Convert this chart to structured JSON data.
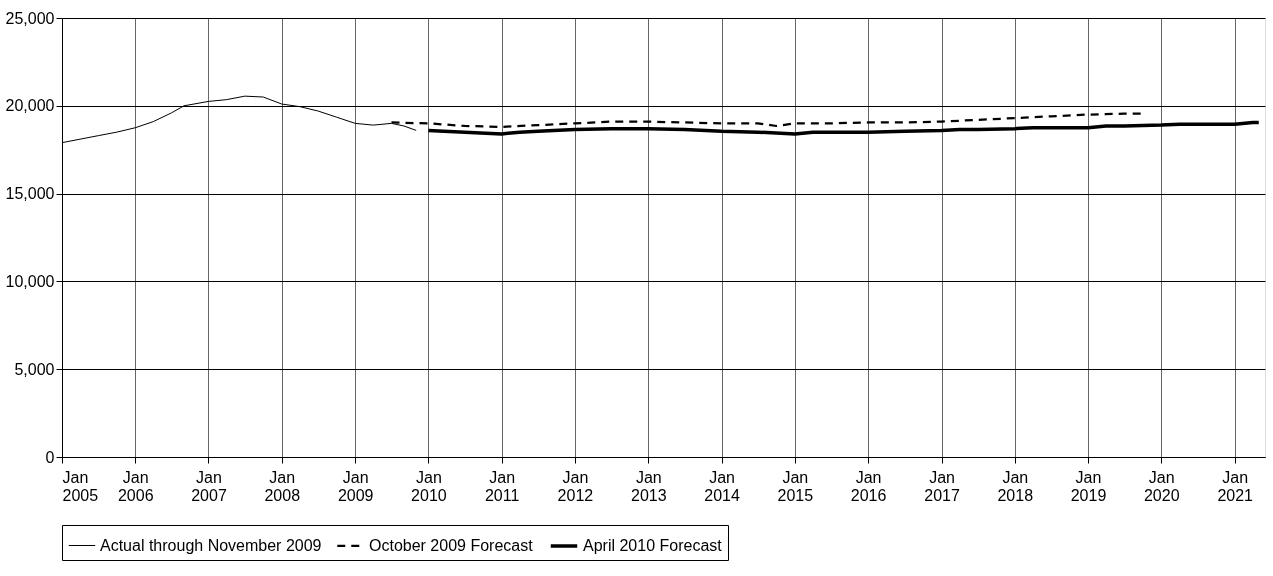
{
  "chart_data": {
    "type": "line",
    "xlim": [
      "2005-01",
      "2021-06"
    ],
    "ylim": [
      0,
      25000
    ],
    "yticks": [
      {
        "value": 0,
        "label": "0"
      },
      {
        "value": 5000,
        "label": "5,000"
      },
      {
        "value": 10000,
        "label": "10,000"
      },
      {
        "value": 15000,
        "label": "15,000"
      },
      {
        "value": 20000,
        "label": "20,000"
      },
      {
        "value": 25000,
        "label": "25,000"
      }
    ],
    "xticks": [
      {
        "value": "2005-01",
        "label": "Jan 2005"
      },
      {
        "value": "2006-01",
        "label": "Jan 2006"
      },
      {
        "value": "2007-01",
        "label": "Jan 2007"
      },
      {
        "value": "2008-01",
        "label": "Jan 2008"
      },
      {
        "value": "2009-01",
        "label": "Jan 2009"
      },
      {
        "value": "2010-01",
        "label": "Jan 2010"
      },
      {
        "value": "2011-01",
        "label": "Jan 2011"
      },
      {
        "value": "2012-01",
        "label": "Jan 2012"
      },
      {
        "value": "2013-01",
        "label": "Jan 2013"
      },
      {
        "value": "2014-01",
        "label": "Jan 2014"
      },
      {
        "value": "2015-01",
        "label": "Jan 2015"
      },
      {
        "value": "2016-01",
        "label": "Jan 2016"
      },
      {
        "value": "2017-01",
        "label": "Jan 2017"
      },
      {
        "value": "2018-01",
        "label": "Jan 2018"
      },
      {
        "value": "2019-01",
        "label": "Jan 2019"
      },
      {
        "value": "2020-01",
        "label": "Jan 2020"
      },
      {
        "value": "2021-01",
        "label": "Jan 2021"
      }
    ],
    "grid": true,
    "legend": "bottom",
    "marker": "none",
    "series": [
      {
        "name": "Actual through November 2009",
        "color": "#000000",
        "line_style": "solid",
        "x": [
          "2005-01",
          "2005-04",
          "2005-07",
          "2005-10",
          "2006-01",
          "2006-04",
          "2006-07",
          "2006-09",
          "2007-01",
          "2007-04",
          "2007-07",
          "2007-10",
          "2008-01",
          "2008-04",
          "2008-07",
          "2008-10",
          "2009-01",
          "2009-04",
          "2009-07",
          "2009-09",
          "2009-11"
        ],
        "values": [
          17900,
          18100,
          18300,
          18500,
          18750,
          19100,
          19600,
          20000,
          20250,
          20350,
          20550,
          20500,
          20100,
          19950,
          19700,
          19350,
          19000,
          18900,
          19000,
          18850,
          18600
        ]
      },
      {
        "name": "October 2009 Forecast",
        "color": "#000000",
        "line_style": "dashed",
        "x": [
          "2009-07",
          "2010-01",
          "2010-07",
          "2011-01",
          "2011-07",
          "2012-01",
          "2012-07",
          "2013-01",
          "2013-07",
          "2014-01",
          "2014-07",
          "2014-10",
          "2015-01",
          "2015-07",
          "2016-01",
          "2016-07",
          "2017-01",
          "2017-07",
          "2018-01",
          "2018-07",
          "2019-01",
          "2019-07",
          "2019-10"
        ],
        "values": [
          19050,
          19000,
          18850,
          18800,
          18900,
          19000,
          19100,
          19100,
          19050,
          19000,
          19000,
          18850,
          19000,
          19000,
          19050,
          19050,
          19100,
          19200,
          19300,
          19400,
          19500,
          19550,
          19550
        ]
      },
      {
        "name": "April 2010 Forecast",
        "color": "#000000",
        "line_style": "solid",
        "x": [
          "2010-01",
          "2010-07",
          "2011-01",
          "2011-04",
          "2011-07",
          "2012-01",
          "2012-07",
          "2013-01",
          "2013-07",
          "2014-01",
          "2014-07",
          "2015-01",
          "2015-04",
          "2015-07",
          "2016-01",
          "2016-07",
          "2017-01",
          "2017-04",
          "2017-07",
          "2018-01",
          "2018-04",
          "2018-07",
          "2019-01",
          "2019-04",
          "2019-07",
          "2020-01",
          "2020-04",
          "2020-07",
          "2021-01",
          "2021-04",
          "2021-05"
        ],
        "values": [
          18600,
          18500,
          18400,
          18500,
          18550,
          18650,
          18700,
          18700,
          18650,
          18550,
          18500,
          18400,
          18500,
          18500,
          18500,
          18550,
          18600,
          18650,
          18650,
          18700,
          18750,
          18750,
          18750,
          18850,
          18850,
          18900,
          18950,
          18950,
          18950,
          19050,
          19050
        ]
      }
    ]
  }
}
